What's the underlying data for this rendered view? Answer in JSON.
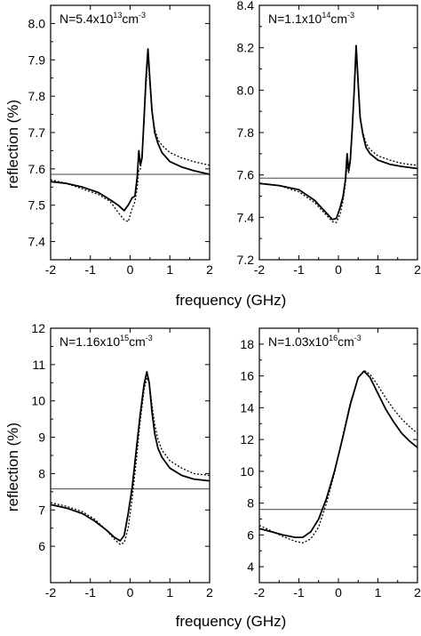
{
  "figure": {
    "xlabel": "frequency (GHz)",
    "ylabel": "reflection (%)"
  },
  "chart_data": [
    {
      "type": "line",
      "title": "",
      "annotation": {
        "prefix": "N=5.4x10",
        "exp": "13",
        "unit": "cm",
        "unit_exp": "-3"
      },
      "xlim": [
        -2,
        2
      ],
      "ylim": [
        7.35,
        8.05
      ],
      "xticks": [
        -2,
        -1,
        0,
        1,
        2
      ],
      "yticks": [
        7.4,
        7.5,
        7.6,
        7.7,
        7.8,
        7.9,
        8.0
      ],
      "ytick_labels": [
        "7.4",
        "7.5",
        "7.6",
        "7.7",
        "7.8",
        "7.9",
        "8.0"
      ],
      "reference_line": 7.585,
      "series": [
        {
          "style": "solid",
          "x": [
            -2,
            -1.6,
            -1.2,
            -0.8,
            -0.5,
            -0.3,
            -0.15,
            -0.05,
            0.05,
            0.12,
            0.18,
            0.22,
            0.26,
            0.3,
            0.35,
            0.4,
            0.45,
            0.5,
            0.55,
            0.62,
            0.7,
            0.8,
            1.0,
            1.3,
            1.6,
            2.0
          ],
          "y": [
            7.565,
            7.56,
            7.55,
            7.535,
            7.515,
            7.5,
            7.485,
            7.5,
            7.52,
            7.525,
            7.58,
            7.65,
            7.61,
            7.63,
            7.74,
            7.85,
            7.93,
            7.84,
            7.76,
            7.7,
            7.67,
            7.645,
            7.62,
            7.605,
            7.595,
            7.585
          ]
        },
        {
          "style": "dotted",
          "x": [
            -2,
            -1.6,
            -1.2,
            -0.8,
            -0.5,
            -0.3,
            -0.15,
            -0.05,
            0.05,
            0.12,
            0.18,
            0.22,
            0.26,
            0.3,
            0.35,
            0.4,
            0.45,
            0.5,
            0.55,
            0.62,
            0.7,
            0.8,
            1.0,
            1.3,
            1.6,
            2.0
          ],
          "y": [
            7.57,
            7.56,
            7.545,
            7.53,
            7.51,
            7.48,
            7.46,
            7.455,
            7.49,
            7.51,
            7.55,
            7.6,
            7.6,
            7.64,
            7.73,
            7.83,
            7.91,
            7.83,
            7.76,
            7.71,
            7.68,
            7.665,
            7.645,
            7.63,
            7.62,
            7.61
          ]
        }
      ]
    },
    {
      "type": "line",
      "title": "",
      "annotation": {
        "prefix": "N=1.1x10",
        "exp": "14",
        "unit": "cm",
        "unit_exp": "-3"
      },
      "xlim": [
        -2,
        2
      ],
      "ylim": [
        7.2,
        8.4
      ],
      "xticks": [
        -2,
        -1,
        0,
        1,
        2
      ],
      "yticks": [
        7.2,
        7.4,
        7.6,
        7.8,
        8.0,
        8.2,
        8.4
      ],
      "ytick_labels": [
        "7.2",
        "7.4",
        "7.6",
        "7.8",
        "8.0",
        "8.2",
        "8.4"
      ],
      "reference_line": 7.585,
      "series": [
        {
          "style": "solid",
          "x": [
            -2,
            -1.5,
            -1.0,
            -0.6,
            -0.3,
            -0.15,
            -0.05,
            0.05,
            0.12,
            0.18,
            0.22,
            0.26,
            0.3,
            0.35,
            0.4,
            0.45,
            0.5,
            0.55,
            0.62,
            0.7,
            0.8,
            1.0,
            1.3,
            1.6,
            2.0
          ],
          "y": [
            7.56,
            7.55,
            7.53,
            7.48,
            7.42,
            7.39,
            7.395,
            7.45,
            7.5,
            7.58,
            7.7,
            7.62,
            7.67,
            7.82,
            8.0,
            8.21,
            8.03,
            7.87,
            7.79,
            7.73,
            7.7,
            7.67,
            7.65,
            7.64,
            7.63
          ]
        },
        {
          "style": "dotted",
          "x": [
            -2,
            -1.5,
            -1.0,
            -0.6,
            -0.3,
            -0.15,
            -0.05,
            0.05,
            0.12,
            0.18,
            0.22,
            0.26,
            0.3,
            0.35,
            0.4,
            0.45,
            0.5,
            0.55,
            0.62,
            0.7,
            0.8,
            1.0,
            1.3,
            1.6,
            2.0
          ],
          "y": [
            7.56,
            7.55,
            7.52,
            7.47,
            7.41,
            7.38,
            7.375,
            7.42,
            7.48,
            7.56,
            7.65,
            7.61,
            7.66,
            7.81,
            7.99,
            8.19,
            8.02,
            7.87,
            7.8,
            7.75,
            7.72,
            7.69,
            7.67,
            7.655,
            7.645
          ]
        }
      ]
    },
    {
      "type": "line",
      "title": "",
      "annotation": {
        "prefix": "N=1.16x10",
        "exp": "15",
        "unit": "cm",
        "unit_exp": "-3"
      },
      "xlim": [
        -2,
        2
      ],
      "ylim": [
        5.0,
        12.0
      ],
      "xticks": [
        -2,
        -1,
        0,
        1,
        2
      ],
      "yticks": [
        6,
        7,
        8,
        9,
        10,
        11,
        12
      ],
      "ytick_labels": [
        "6",
        "7",
        "8",
        "9",
        "10",
        "11",
        "12"
      ],
      "reference_line": 7.58,
      "series": [
        {
          "style": "solid",
          "x": [
            -2,
            -1.6,
            -1.2,
            -0.9,
            -0.6,
            -0.4,
            -0.25,
            -0.15,
            -0.05,
            0.05,
            0.15,
            0.25,
            0.35,
            0.42,
            0.48,
            0.55,
            0.62,
            0.7,
            0.8,
            1.0,
            1.3,
            1.6,
            2.0
          ],
          "y": [
            7.15,
            7.05,
            6.9,
            6.7,
            6.45,
            6.25,
            6.15,
            6.3,
            6.9,
            7.6,
            8.6,
            9.6,
            10.45,
            10.8,
            10.5,
            9.7,
            9.1,
            8.7,
            8.45,
            8.15,
            7.95,
            7.85,
            7.8
          ]
        },
        {
          "style": "dotted",
          "x": [
            -2,
            -1.6,
            -1.2,
            -0.9,
            -0.6,
            -0.4,
            -0.25,
            -0.15,
            -0.05,
            0.05,
            0.15,
            0.25,
            0.35,
            0.42,
            0.48,
            0.55,
            0.62,
            0.7,
            0.8,
            1.0,
            1.3,
            1.6,
            2.0
          ],
          "y": [
            7.2,
            7.1,
            6.95,
            6.75,
            6.45,
            6.2,
            6.05,
            6.1,
            6.5,
            7.3,
            8.3,
            9.4,
            10.3,
            10.65,
            10.5,
            9.9,
            9.35,
            8.95,
            8.65,
            8.35,
            8.15,
            8.0,
            7.95
          ]
        }
      ]
    },
    {
      "type": "line",
      "title": "",
      "annotation": {
        "prefix": "N=1.03x10",
        "exp": "16",
        "unit": "cm",
        "unit_exp": "-3"
      },
      "xlim": [
        -2,
        2
      ],
      "ylim": [
        3.0,
        19.0
      ],
      "xticks": [
        -2,
        -1,
        0,
        1,
        2
      ],
      "yticks": [
        4,
        6,
        8,
        10,
        12,
        14,
        16,
        18
      ],
      "ytick_labels": [
        "4",
        "6",
        "8",
        "10",
        "12",
        "14",
        "16",
        "18"
      ],
      "reference_line": 7.6,
      "series": [
        {
          "style": "solid",
          "x": [
            -2,
            -1.7,
            -1.4,
            -1.1,
            -0.9,
            -0.7,
            -0.5,
            -0.3,
            -0.1,
            0.1,
            0.3,
            0.5,
            0.65,
            0.8,
            1.0,
            1.2,
            1.4,
            1.6,
            1.8,
            2.0
          ],
          "y": [
            6.4,
            6.2,
            6.0,
            5.85,
            5.85,
            6.2,
            7.0,
            8.3,
            10.0,
            12.0,
            14.2,
            15.9,
            16.3,
            15.9,
            14.9,
            13.9,
            13.1,
            12.4,
            11.9,
            11.5
          ]
        },
        {
          "style": "dotted",
          "x": [
            -2,
            -1.7,
            -1.4,
            -1.1,
            -0.9,
            -0.7,
            -0.5,
            -0.3,
            -0.1,
            0.1,
            0.3,
            0.5,
            0.65,
            0.8,
            1.0,
            1.2,
            1.4,
            1.6,
            1.8,
            2.0
          ],
          "y": [
            6.6,
            6.25,
            5.9,
            5.6,
            5.5,
            5.75,
            6.5,
            8.0,
            9.9,
            12.1,
            14.3,
            15.9,
            16.35,
            16.1,
            15.4,
            14.6,
            13.9,
            13.3,
            12.8,
            12.4
          ]
        }
      ]
    }
  ]
}
